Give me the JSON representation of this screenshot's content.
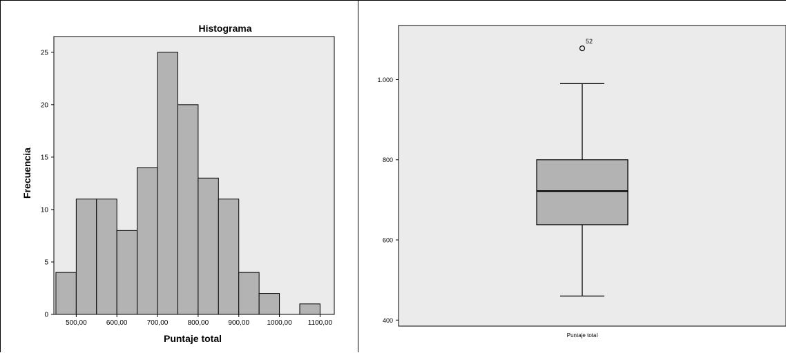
{
  "chart_data": [
    {
      "type": "bar",
      "subtype": "histogram",
      "title": "Histograma",
      "xlabel": "Puntaje total",
      "ylabel": "Frecuencia",
      "bin_edges": [
        450,
        500,
        550,
        600,
        650,
        700,
        750,
        800,
        850,
        900,
        950,
        1000,
        1050,
        1100
      ],
      "values": [
        4,
        11,
        11,
        8,
        14,
        25,
        20,
        13,
        11,
        4,
        2,
        0,
        1
      ],
      "xlim": [
        445,
        1135
      ],
      "ylim": [
        0,
        26.5
      ],
      "x_ticks": [
        500,
        600,
        700,
        800,
        900,
        1000,
        1100
      ],
      "x_tick_labels": [
        "500,00",
        "600,00",
        "700,00",
        "800,00",
        "900,00",
        "1000,00",
        "1100,00"
      ],
      "y_ticks": [
        0,
        5,
        10,
        15,
        20,
        25
      ],
      "y_tick_labels": [
        "0",
        "5",
        "10",
        "15",
        "20",
        "25"
      ],
      "grid": false,
      "colors": {
        "bar_fill": "#b3b3b3",
        "plot_bg": "#ebebeb",
        "outline": "#000000"
      }
    },
    {
      "type": "boxplot",
      "category": "Puntaje total",
      "ylim": [
        385,
        1135
      ],
      "y_ticks": [
        400,
        600,
        800,
        1000
      ],
      "y_tick_labels": [
        "400",
        "600",
        "800",
        "1.000"
      ],
      "whisker_low": 460,
      "q1": 638,
      "median": 722,
      "q3": 800,
      "whisker_high": 990,
      "outliers": [
        {
          "value": 1078,
          "label": "52"
        }
      ],
      "grid": false,
      "colors": {
        "box_fill": "#b3b3b3",
        "plot_bg": "#ebebeb",
        "outline": "#000000"
      }
    }
  ]
}
